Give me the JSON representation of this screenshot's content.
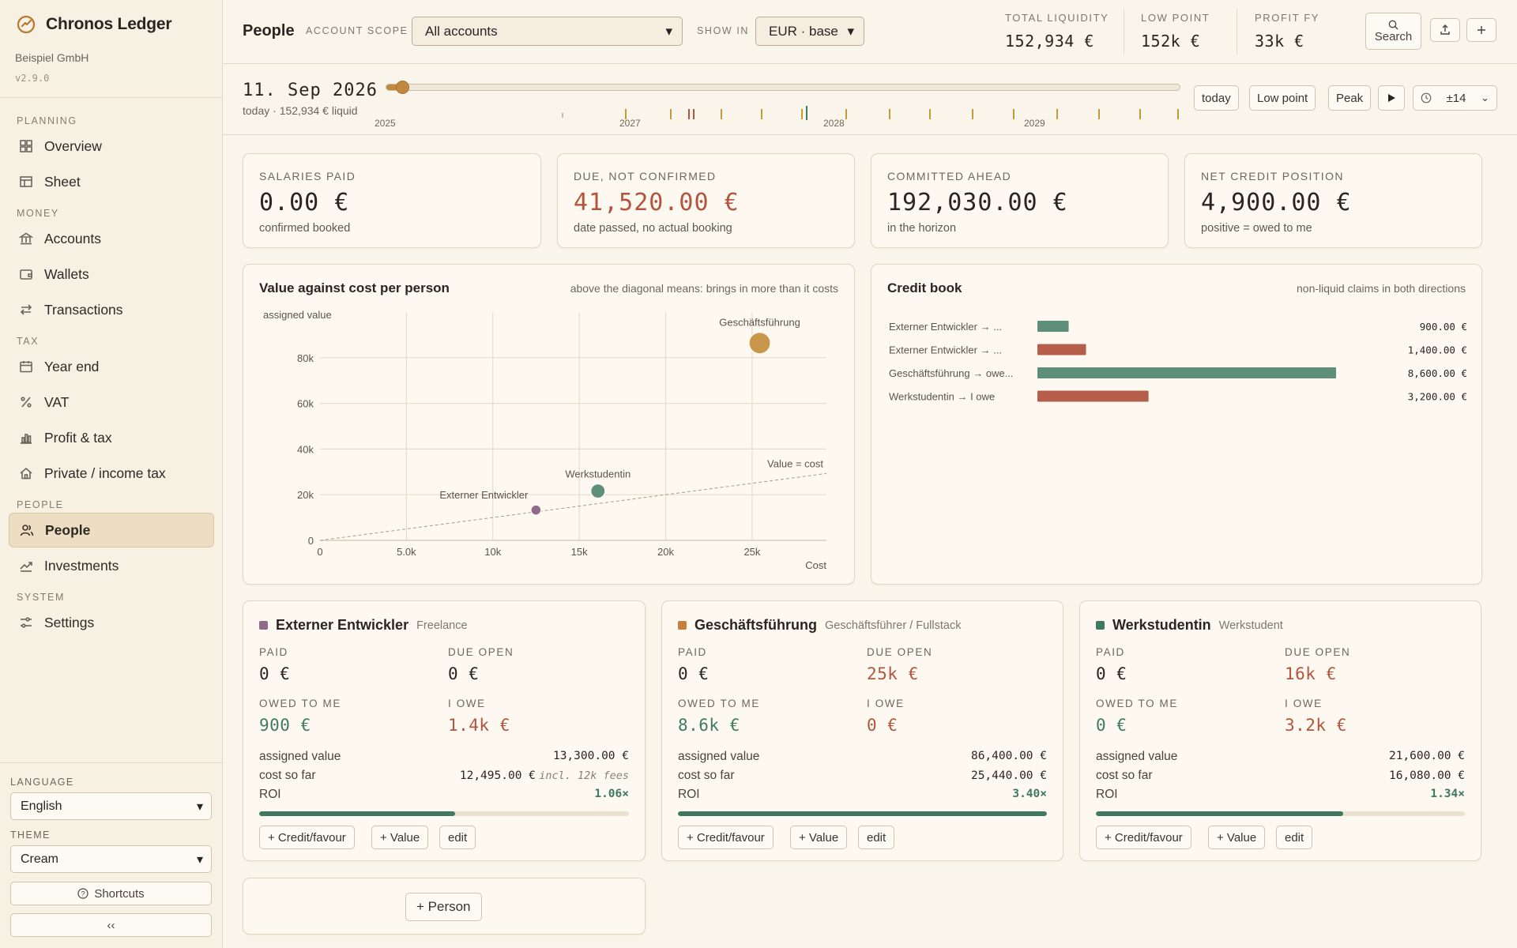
{
  "app": {
    "name": "Chronos Ledger",
    "company": "Beispiel GmbH",
    "version": "v2.9.0"
  },
  "sidebar": {
    "sections": [
      {
        "label": "PLANNING",
        "items": [
          {
            "label": "Overview",
            "icon": "grid-icon"
          },
          {
            "label": "Sheet",
            "icon": "table-icon"
          }
        ]
      },
      {
        "label": "MONEY",
        "items": [
          {
            "label": "Accounts",
            "icon": "bank-icon"
          },
          {
            "label": "Wallets",
            "icon": "wallet-icon"
          },
          {
            "label": "Transactions",
            "icon": "transfer-icon"
          }
        ]
      },
      {
        "label": "TAX",
        "items": [
          {
            "label": "Year end",
            "icon": "calendar-icon"
          },
          {
            "label": "VAT",
            "icon": "percent-icon"
          },
          {
            "label": "Profit & tax",
            "icon": "bar-chart-icon"
          },
          {
            "label": "Private / income tax",
            "icon": "home-icon"
          }
        ]
      },
      {
        "label": "PEOPLE",
        "items": [
          {
            "label": "People",
            "icon": "users-icon",
            "active": true
          },
          {
            "label": "Investments",
            "icon": "trend-icon"
          }
        ]
      },
      {
        "label": "SYSTEM",
        "items": [
          {
            "label": "Settings",
            "icon": "sliders-icon"
          }
        ]
      }
    ],
    "language_label": "LANGUAGE",
    "language_value": "English",
    "theme_label": "THEME",
    "theme_value": "Cream",
    "shortcuts_label": "Shortcuts",
    "collapse_label": "‹‹"
  },
  "header": {
    "title": "People",
    "scope_label": "ACCOUNT SCOPE",
    "scope_value": "All accounts",
    "show_label": "SHOW IN",
    "show_value": "EUR · base",
    "kpis": [
      {
        "label": "TOTAL LIQUIDITY",
        "value": "152,934 €"
      },
      {
        "label": "LOW POINT",
        "value": "152k €"
      },
      {
        "label": "PROFIT FY",
        "value": "33k €"
      }
    ],
    "search_label": "Search"
  },
  "timeline": {
    "date": "11. Sep 2026",
    "sub": "today · 152,934 € liquid",
    "position": 0.015,
    "years": [
      "2025",
      "2027",
      "2028",
      "2029"
    ],
    "buttons": {
      "today": "today",
      "low": "Low point",
      "peak": "Peak",
      "range": "±14"
    }
  },
  "stats": [
    {
      "label": "SALARIES PAID",
      "value": "0.00 €",
      "sub": "confirmed booked",
      "color": "#2a2520"
    },
    {
      "label": "DUE, NOT CONFIRMED",
      "value": "41,520.00 €",
      "sub": "date passed, no actual booking",
      "color": "#b3543d"
    },
    {
      "label": "COMMITTED AHEAD",
      "value": "192,030.00 €",
      "sub": "in the horizon",
      "color": "#2a2520"
    },
    {
      "label": "NET CREDIT POSITION",
      "value": "4,900.00 €",
      "sub": "positive = owed to me",
      "color": "#2a2520"
    }
  ],
  "scatter": {
    "title": "Value against cost per person",
    "subtitle": "above the diagonal means: brings in more than it costs",
    "ylabel": "assigned value",
    "xlabel": "Cost",
    "diagonal_label": "Value = cost"
  },
  "chart_data": {
    "type": "scatter",
    "title": "Value against cost per person",
    "xlabel": "Cost",
    "ylabel": "assigned value",
    "xlim": [
      0,
      29300
    ],
    "ylim": [
      0,
      100000
    ],
    "xticks": [
      0,
      5000,
      10000,
      15000,
      20000,
      25000
    ],
    "xtick_labels": [
      "0",
      "5.0k",
      "10k",
      "15k",
      "20k",
      "25k"
    ],
    "yticks": [
      0,
      20000,
      40000,
      60000,
      80000
    ],
    "ytick_labels": [
      "0",
      "20k",
      "40k",
      "60k",
      "80k"
    ],
    "grid": true,
    "points": [
      {
        "name": "Externer Entwickler",
        "x": 12495,
        "y": 13300,
        "color": "#8f6a8a",
        "size": 1
      },
      {
        "name": "Werkstudentin",
        "x": 16080,
        "y": 21600,
        "color": "#5e8f7b",
        "size": 1.4
      },
      {
        "name": "Geschäftsführung",
        "x": 25440,
        "y": 86400,
        "color": "#c9974b",
        "size": 2.1
      }
    ]
  },
  "credit_book": {
    "title": "Credit book",
    "subtitle": "non-liquid claims in both directions",
    "max": 8600,
    "rows": [
      {
        "label": "Externer Entwickler → ...",
        "value": 900,
        "display": "900.00 €",
        "color": "#5e8f7b"
      },
      {
        "label": "Externer Entwickler → ...",
        "value": 1400,
        "display": "1,400.00 €",
        "color": "#b55f4b"
      },
      {
        "label": "Geschäftsführung → owe...",
        "value": 8600,
        "display": "8,600.00 €",
        "color": "#5e8f7b"
      },
      {
        "label": "Werkstudentin → I owe",
        "value": 3200,
        "display": "3,200.00 €",
        "color": "#b55f4b"
      }
    ]
  },
  "people": [
    {
      "name": "Externer Entwickler",
      "role": "Freelance",
      "color": "#8f6a8a",
      "paid": "0 €",
      "due_open": "0 €",
      "owed_to_me": "900 €",
      "i_owe": "1.4k €",
      "assigned_value": "13,300.00 €",
      "cost_so_far": "12,495.00 €",
      "cost_note": "incl. 12k fees",
      "roi": "1.06×",
      "roi_fill": 0.53
    },
    {
      "name": "Geschäftsführung",
      "role": "Geschäftsführer / Fullstack",
      "color": "#c97f3c",
      "paid": "0 €",
      "due_open": "25k €",
      "owed_to_me": "8.6k €",
      "i_owe": "0 €",
      "assigned_value": "86,400.00 €",
      "cost_so_far": "25,440.00 €",
      "cost_note": "",
      "roi": "3.40×",
      "roi_fill": 1.0
    },
    {
      "name": "Werkstudentin",
      "role": "Werkstudent",
      "color": "#3f7a5e",
      "paid": "0 €",
      "due_open": "16k €",
      "owed_to_me": "0 €",
      "i_owe": "3.2k €",
      "assigned_value": "21,600.00 €",
      "cost_so_far": "16,080.00 €",
      "cost_note": "",
      "roi": "1.34×",
      "roi_fill": 0.67
    }
  ],
  "person_labels": {
    "paid": "PAID",
    "due_open": "DUE OPEN",
    "owed_to_me": "OWED TO ME",
    "i_owe": "I OWE",
    "assigned_value": "assigned value",
    "cost_so_far": "cost so far",
    "roi": "ROI",
    "add_credit": "+ Credit/favour",
    "add_value": "+ Value",
    "edit": "edit"
  },
  "add_person_label": "+ Person"
}
